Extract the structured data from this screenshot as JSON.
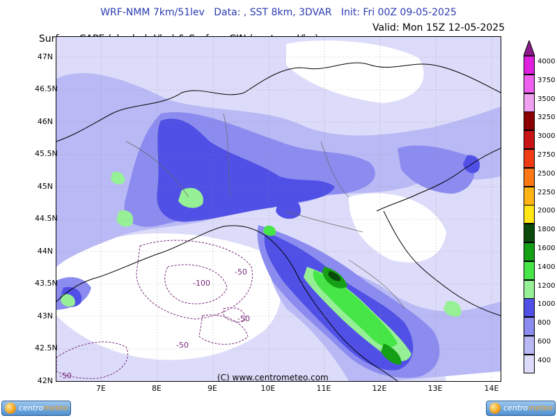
{
  "header": {
    "line1": "WRF-NMM 7km/51lev   Data: , SST 8km, 3DVAR   Init: Fri 00Z 09-05-2025",
    "line2": "Surface CAPE (shaded, J/kg) & Surface CIN (contour, J/kg)",
    "valid": "Valid: Mon 15Z 12-05-2025"
  },
  "axes": {
    "y_ticks": [
      "47N",
      "46.5N",
      "46N",
      "45.5N",
      "45N",
      "44.5N",
      "44N",
      "43.5N",
      "43N",
      "42.5N",
      "42N"
    ],
    "x_ticks": [
      "7E",
      "8E",
      "9E",
      "10E",
      "11E",
      "12E",
      "13E",
      "14E"
    ]
  },
  "contour_labels": [
    "-50",
    "-100",
    "-50",
    "-50",
    "-50"
  ],
  "copyright": "(C) www.centrometeo.com",
  "colorbar": {
    "labels": [
      "4000",
      "3750",
      "3500",
      "3250",
      "3000",
      "2750",
      "2500",
      "2250",
      "2000",
      "1800",
      "1600",
      "1400",
      "1200",
      "1000",
      "800",
      "600",
      "400"
    ],
    "colors": [
      "#e020e0",
      "#f060f0",
      "#f0a0f0",
      "#8b0000",
      "#c81414",
      "#f03c14",
      "#ff7814",
      "#ffb414",
      "#ffe614",
      "#0a4a0a",
      "#14a014",
      "#46e646",
      "#96f096",
      "#5050e6",
      "#8c8cf0",
      "#b9b9f5",
      "#dcdcfa"
    ],
    "top_arrow_color": "#8b1a8b"
  },
  "logos": {
    "left_text_a": "centro",
    "left_text_b": "meteo",
    "right_text_a": "centro",
    "right_text_b": "meteo"
  },
  "palette": {
    "cape_400": "#dcdcfa",
    "cape_600": "#b9b9f5",
    "cape_800": "#8c8cf0",
    "cape_1000": "#5050e6",
    "cape_1200": "#96f096",
    "cape_1400": "#46e646",
    "cape_1600": "#14a014",
    "cape_1800": "#0a4a0a",
    "cin_contour": "#7a2a7a"
  }
}
